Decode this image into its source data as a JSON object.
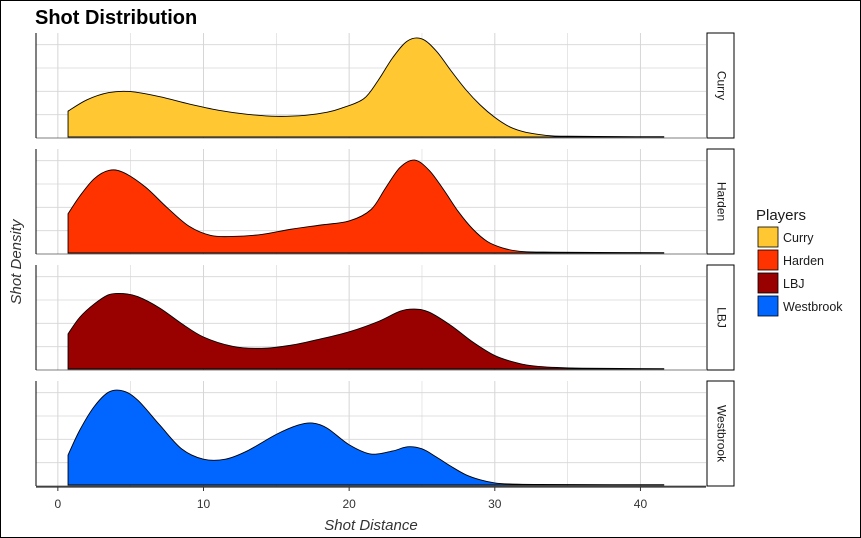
{
  "chart_data": {
    "type": "area",
    "title": "Shot Distribution",
    "xlabel": "Shot Distance",
    "ylabel": "Shot Density",
    "xlim": [
      -1.5,
      44.5
    ],
    "x_ticks": [
      0,
      10,
      20,
      30,
      40
    ],
    "facet_by": "row",
    "grid": true,
    "legend": {
      "title": "Players",
      "position": "right"
    },
    "series": [
      {
        "name": "Curry",
        "color": "#FFC832",
        "x": [
          0.7,
          2,
          3.5,
          5,
          7,
          9,
          11,
          13,
          15,
          17,
          18.5,
          19.5,
          21,
          22,
          23,
          24,
          25,
          26,
          27,
          28,
          29,
          30,
          31,
          32,
          33,
          34,
          35,
          37,
          40,
          41.6
        ],
        "density": [
          0.025,
          0.036,
          0.043,
          0.044,
          0.039,
          0.032,
          0.026,
          0.022,
          0.02,
          0.021,
          0.024,
          0.028,
          0.037,
          0.055,
          0.077,
          0.093,
          0.095,
          0.083,
          0.064,
          0.046,
          0.031,
          0.019,
          0.01,
          0.005,
          0.0025,
          0.001,
          0.0008,
          0.0005,
          0.0003,
          0.0003
        ]
      },
      {
        "name": "Harden",
        "color": "#FF3300",
        "x": [
          0.7,
          1.5,
          2.5,
          3.5,
          4.5,
          6,
          7.5,
          9,
          10.5,
          12,
          14,
          16,
          18,
          20,
          21.5,
          22.5,
          23.5,
          24.5,
          25.5,
          26.5,
          27.5,
          28.5,
          29.5,
          30.5,
          31.5,
          32.5,
          34,
          37,
          41.6
        ],
        "density": [
          0.038,
          0.055,
          0.072,
          0.08,
          0.078,
          0.064,
          0.044,
          0.026,
          0.017,
          0.016,
          0.018,
          0.023,
          0.027,
          0.031,
          0.042,
          0.063,
          0.083,
          0.09,
          0.08,
          0.061,
          0.04,
          0.023,
          0.011,
          0.005,
          0.002,
          0.001,
          0.0008,
          0.0005,
          0.0003
        ]
      },
      {
        "name": "LBJ",
        "color": "#990000",
        "x": [
          0.7,
          1.5,
          2.5,
          3.5,
          4.5,
          5.5,
          7,
          8.5,
          10,
          12,
          14,
          16,
          18,
          20,
          22,
          23.5,
          24.5,
          25.5,
          27,
          28.5,
          30,
          31.5,
          33,
          36,
          41.6
        ],
        "density": [
          0.034,
          0.05,
          0.063,
          0.072,
          0.073,
          0.07,
          0.059,
          0.044,
          0.031,
          0.022,
          0.02,
          0.023,
          0.029,
          0.036,
          0.046,
          0.056,
          0.058,
          0.055,
          0.042,
          0.026,
          0.013,
          0.006,
          0.0025,
          0.0008,
          0.0003
        ]
      },
      {
        "name": "Westbrook",
        "color": "#0066FF",
        "x": [
          0.7,
          1.5,
          2.5,
          3.5,
          4.5,
          5.5,
          7,
          8.5,
          10,
          11.5,
          13,
          15,
          16.5,
          17.5,
          18.5,
          20,
          21.5,
          23,
          24,
          25,
          26,
          27,
          28,
          29,
          30,
          31,
          33,
          38,
          41.6
        ],
        "density": [
          0.029,
          0.053,
          0.076,
          0.09,
          0.091,
          0.082,
          0.058,
          0.035,
          0.025,
          0.025,
          0.033,
          0.049,
          0.058,
          0.06,
          0.055,
          0.039,
          0.03,
          0.033,
          0.037,
          0.035,
          0.027,
          0.018,
          0.01,
          0.005,
          0.002,
          0.001,
          0.0005,
          0.0003,
          0.0003
        ]
      }
    ]
  }
}
